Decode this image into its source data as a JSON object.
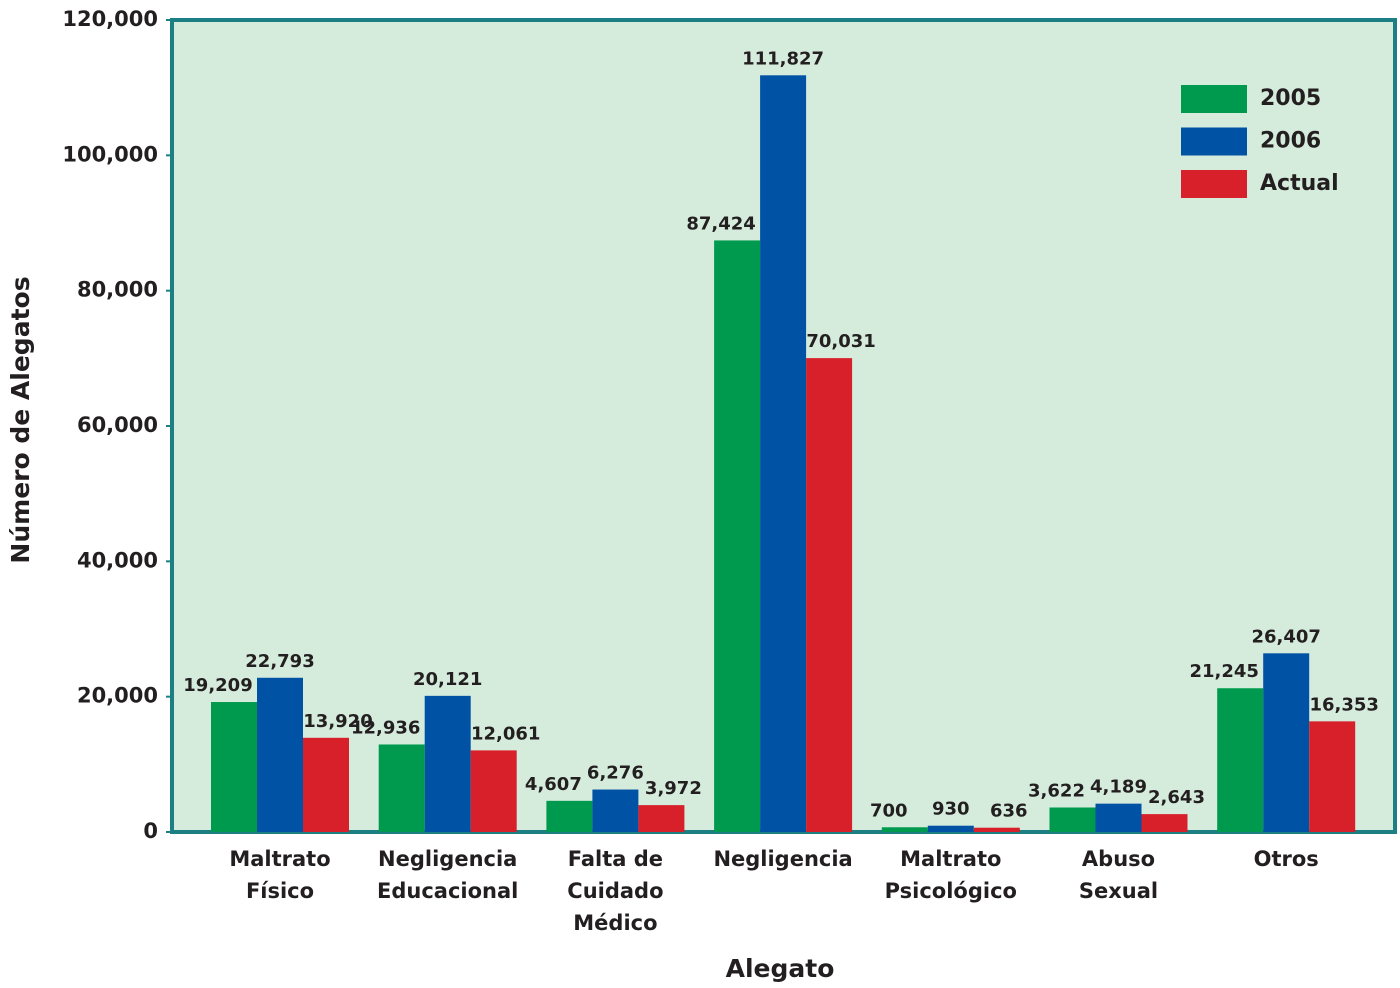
{
  "chart_data": {
    "type": "bar",
    "x_label": "Alegato",
    "y_label": "Número de Alegatos",
    "categories": [
      [
        "Maltrato",
        "Físico"
      ],
      [
        "Negligencia",
        "Educacional"
      ],
      [
        "Falta de",
        "Cuidado",
        "Médico"
      ],
      [
        "Negligencia"
      ],
      [
        "Maltrato",
        "Psicológico"
      ],
      [
        "Abuso",
        "Sexual"
      ],
      [
        "Otros"
      ]
    ],
    "series": [
      {
        "name": "2005",
        "color": "#009a4e",
        "values": [
          19209,
          12936,
          4607,
          87424,
          700,
          3622,
          21245
        ],
        "value_labels": [
          "19,209",
          "12,936",
          "4,607",
          "87,424",
          "700",
          "3,622",
          "21,245"
        ]
      },
      {
        "name": "2006",
        "color": "#0052a5",
        "values": [
          22793,
          20121,
          6276,
          111827,
          930,
          4189,
          26407
        ],
        "value_labels": [
          "22,793",
          "20,121",
          "6,276",
          "111,827",
          "930",
          "4,189",
          "26,407"
        ]
      },
      {
        "name": "Actual",
        "color": "#d7202a",
        "values": [
          13920,
          12061,
          3972,
          70031,
          636,
          2643,
          16353
        ],
        "value_labels": [
          "13,920",
          "12,061",
          "3,972",
          "70,031",
          "636",
          "2,643",
          "16,353"
        ]
      }
    ],
    "ylim": [
      0,
      120000
    ],
    "yticks": [
      0,
      {
        "value": 20000,
        "label": "20,000"
      },
      {
        "value": 40000,
        "label": "40,000"
      },
      {
        "value": 60000,
        "label": "60,000"
      },
      {
        "value": 80000,
        "label": "80,000"
      },
      {
        "value": 100000,
        "label": "100,000"
      },
      {
        "value": 120000,
        "label": "120,000"
      }
    ],
    "legend": "top-right"
  }
}
